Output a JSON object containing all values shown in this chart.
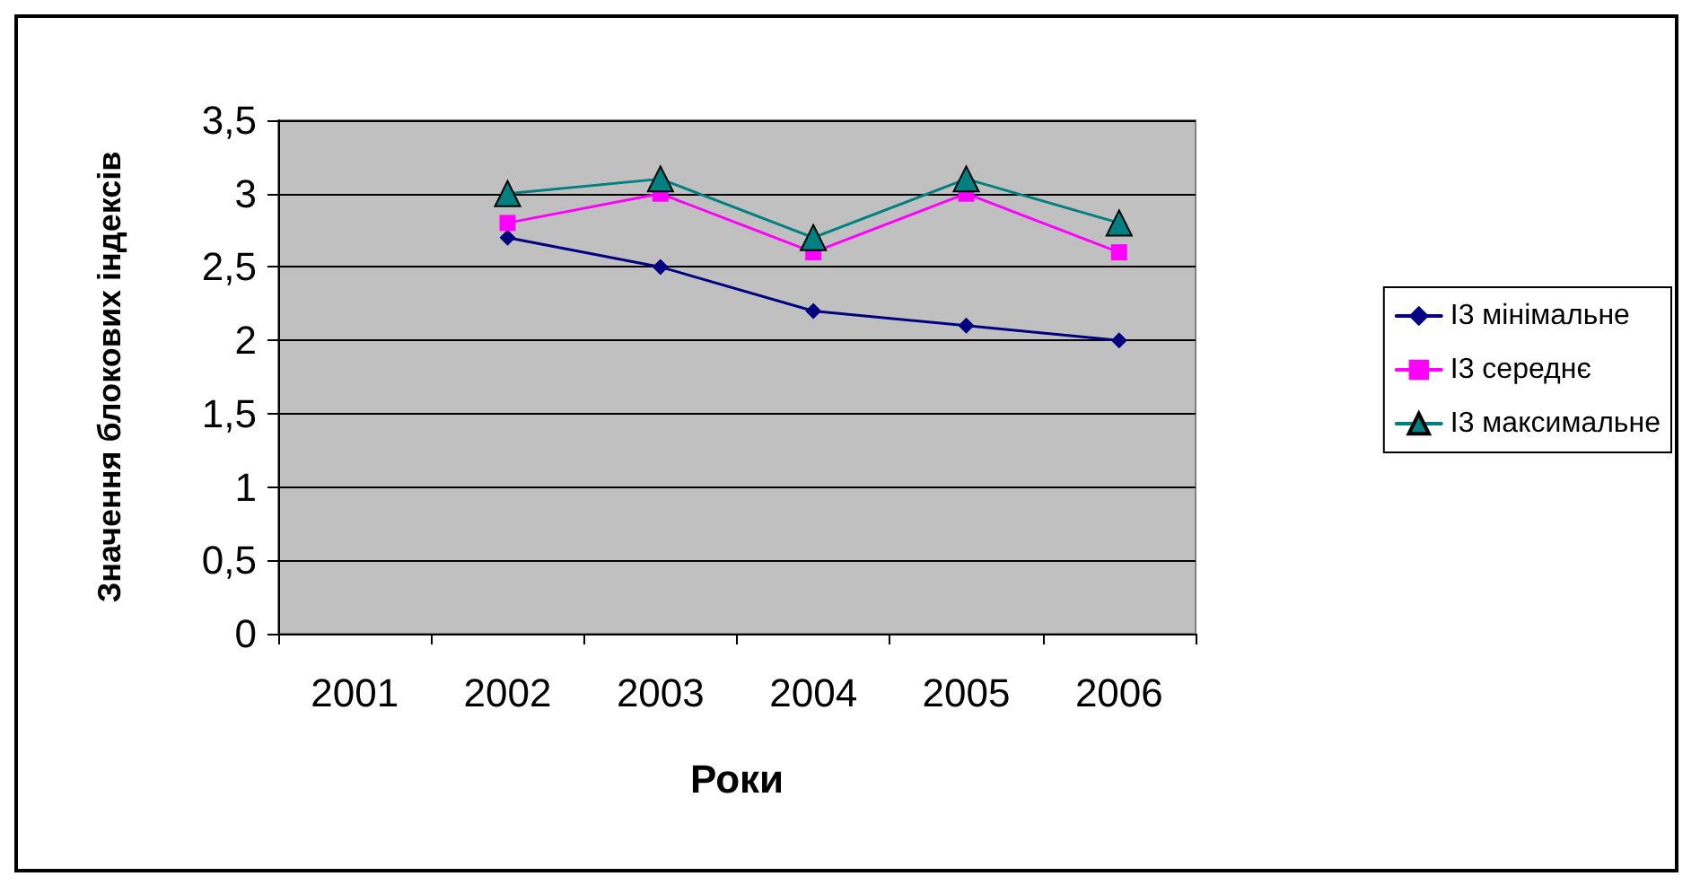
{
  "chart_data": {
    "type": "line",
    "xlabel": "Роки",
    "ylabel": "Значення блокових індексів",
    "categories": [
      "2001",
      "2002",
      "2003",
      "2004",
      "2005",
      "2006"
    ],
    "series": [
      {
        "name": "І3 мінімальне",
        "color": "#000080",
        "marker": "diamond",
        "values": [
          null,
          2.7,
          2.5,
          2.2,
          2.1,
          2.0
        ]
      },
      {
        "name": "І3 середнє",
        "color": "#ff00ff",
        "marker": "square",
        "values": [
          null,
          2.8,
          3.0,
          2.6,
          3.0,
          2.6
        ]
      },
      {
        "name": "І3 максимальне",
        "color": "#008080",
        "marker": "triangle",
        "values": [
          null,
          3.0,
          3.1,
          2.7,
          3.1,
          2.8
        ]
      }
    ],
    "ylim": [
      0,
      3.5
    ],
    "yticks": [
      0,
      {
        "value": 0.5,
        "label": "0,5"
      },
      1,
      {
        "value": 1.5,
        "label": "1,5"
      },
      2,
      {
        "value": 2.5,
        "label": "2,5"
      },
      3,
      {
        "value": 3.5,
        "label": "3,5"
      }
    ],
    "grid": "y",
    "legend": "right",
    "line_style": "solid"
  }
}
